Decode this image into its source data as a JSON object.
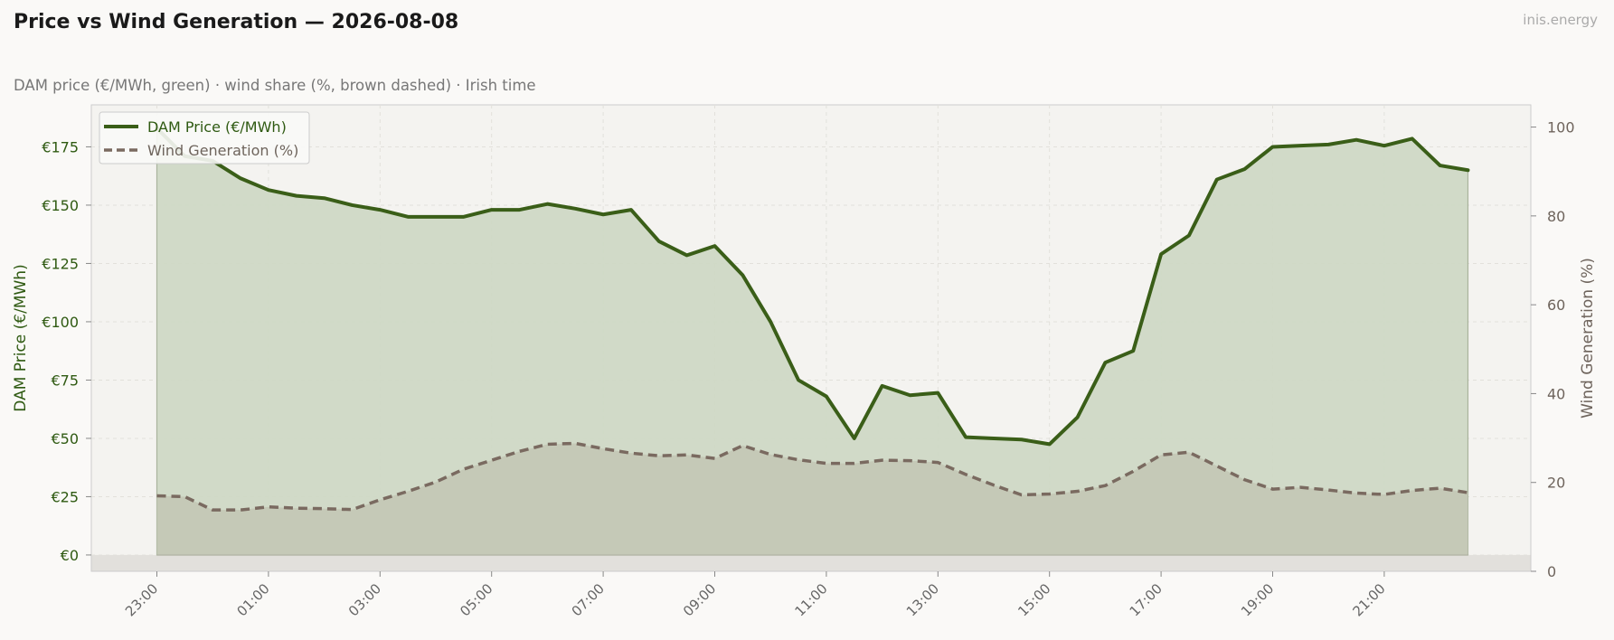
{
  "header": {
    "title": "Price vs Wind Generation — 2026-08-08",
    "subtitle": "DAM price (€/MWh, green)  ·  wind share (%, brown dashed)  ·  Irish time",
    "brand": "inis.energy"
  },
  "colors": {
    "price": "#3a5e18",
    "price_fill": "#cfd8c5",
    "wind": "#7a6a60",
    "wind_fill": "#c3c6b5",
    "plot_bg": "#f4f3f0",
    "below_zero": "#e2e0dc"
  },
  "chart_data": {
    "type": "line",
    "xlabel": "",
    "ylabel_left": "DAM Price (€/MWh)",
    "ylabel_right": "Wind Generation (%)",
    "ylim_left": [
      -7,
      193
    ],
    "ylim_right": [
      0,
      105
    ],
    "x_tick_labels": [
      "23:00",
      "01:00",
      "03:00",
      "05:00",
      "07:00",
      "09:00",
      "11:00",
      "13:00",
      "15:00",
      "17:00",
      "19:00",
      "21:00"
    ],
    "y_left_tick_labels": [
      "€0",
      "€25",
      "€50",
      "€75",
      "€100",
      "€125",
      "€150",
      "€175"
    ],
    "y_left_tick_values": [
      0,
      25,
      50,
      75,
      100,
      125,
      150,
      175
    ],
    "y_right_tick_labels": [
      "0",
      "20",
      "40",
      "60",
      "80",
      "100"
    ],
    "y_right_tick_values": [
      0,
      20,
      40,
      60,
      80,
      100
    ],
    "grid": true,
    "legend_position": "top-left",
    "series": [
      {
        "name": "DAM Price (€/MWh)",
        "axis": "left",
        "style": "solid",
        "values": [
          183,
          171,
          169,
          161.5,
          156.5,
          154,
          153,
          150,
          148,
          145,
          145,
          145,
          148,
          148,
          150.5,
          148.5,
          146,
          148,
          134.5,
          128.5,
          132.5,
          120,
          100,
          75,
          68,
          50,
          72.5,
          68.5,
          69.5,
          50.5,
          50,
          49.5,
          47.5,
          59,
          82.5,
          87.5,
          129,
          137,
          161,
          165.5,
          175,
          175.5,
          176,
          178,
          175.5,
          178.5,
          167,
          165
        ]
      },
      {
        "name": "Wind Generation (%)",
        "axis": "right",
        "style": "dashed",
        "values": [
          17,
          16.8,
          13.8,
          13.8,
          14.5,
          14.2,
          14.1,
          13.9,
          16.1,
          18,
          20.1,
          23,
          25,
          27,
          28.6,
          28.8,
          27.6,
          26.6,
          26,
          26.2,
          25.4,
          28.3,
          26.3,
          25.1,
          24.3,
          24.3,
          25,
          24.9,
          24.5,
          21.8,
          19.4,
          17.2,
          17.4,
          18,
          19.3,
          22.5,
          26.2,
          26.8,
          23.7,
          20.6,
          18.5,
          18.9,
          18.3,
          17.6,
          17.3,
          18.2,
          18.7,
          17.7
        ]
      }
    ]
  }
}
